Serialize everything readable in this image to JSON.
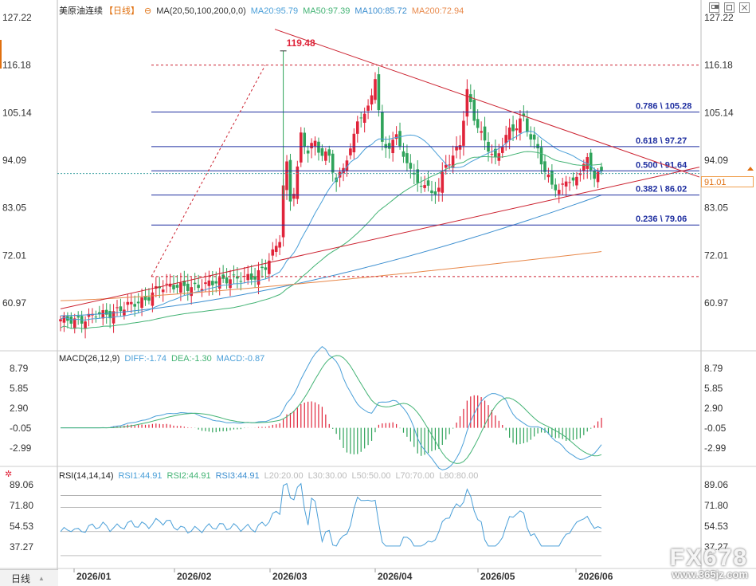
{
  "header": {
    "symbol": "美原油连续",
    "period_badge": "【日线】",
    "ma_label": "MA(20,50,100,200,0,0)",
    "ma20": "MA20:95.79",
    "ma50": "MA50:97.39",
    "ma100": "MA100:85.72",
    "ma200": "MA200:72.94"
  },
  "macd_header": {
    "label": "MACD(26,12,9)",
    "diff": "DIFF:-1.74",
    "dea": "DEA:-1.30",
    "macd": "MACD:-0.87"
  },
  "rsi_header": {
    "label": "RSI(14,14,14)",
    "rsi1": "RSI1:44.91",
    "rsi2": "RSI2:44.91",
    "rsi3": "RSI3:44.91",
    "l20": "L20:20.00",
    "l30": "L30:30.00",
    "l50": "L50:50.00",
    "l70": "L70:70.00",
    "l80": "L80:80.00"
  },
  "bottom_tab": {
    "label": "日线"
  },
  "current_price": "91.01",
  "high_label": "119.48",
  "watermark": {
    "logo": "FX678",
    "url": "www.365jz.com"
  },
  "colors": {
    "up": "#e0243a",
    "down": "#2fa35a",
    "ma20": "#4a9fd8",
    "ma50": "#43b374",
    "ma100": "#3d8fd0",
    "ma200": "#e8884a",
    "fib": "#1f2fa0",
    "trend": "#cc2230",
    "diff": "#4a9fd8",
    "dea": "#43b374",
    "rsi": "#4a9fd8"
  },
  "chart_data": [
    {
      "type": "candlestick",
      "title": "美原油连续 日线",
      "y_ticks": [
        "127.22",
        "116.18",
        "105.14",
        "94.09",
        "83.05",
        "72.01",
        "60.97"
      ],
      "ylim": [
        55,
        130
      ],
      "x_ticks": [
        "2026/01",
        "2026/02",
        "2026/03",
        "2026/04",
        "2026/05",
        "2026/06"
      ],
      "ma_lines": {
        "MA20": 95.79,
        "MA50": 97.39,
        "MA100": 85.72,
        "MA200": 72.94
      },
      "fib_levels": [
        {
          "label": "0.786 \\ 105.28",
          "value": 105.28
        },
        {
          "label": "0.618 \\ 97.27",
          "value": 97.27
        },
        {
          "label": "0.500 \\ 91.64",
          "value": 91.64
        },
        {
          "label": "0.382 \\ 86.02",
          "value": 86.02
        },
        {
          "label": "0.236 \\ 79.06",
          "value": 79.06
        }
      ],
      "highest": 119.48,
      "last": 91.01
    },
    {
      "type": "bar",
      "title": "MACD(26,12,9)",
      "y_ticks": [
        "8.79",
        "5.85",
        "2.90",
        "-0.05",
        "-2.99"
      ],
      "diff": -1.74,
      "dea": -1.3,
      "macd": -0.87
    },
    {
      "type": "line",
      "title": "RSI(14,14,14)",
      "y_ticks": [
        "89.06",
        "71.80",
        "54.53",
        "37.27"
      ],
      "rsi": 44.91
    }
  ]
}
